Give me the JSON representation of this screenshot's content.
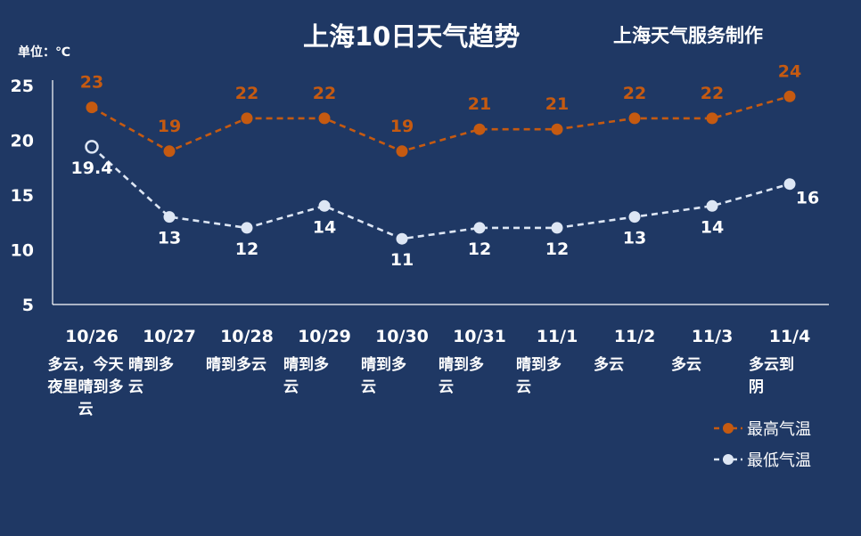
{
  "title": "上海10日天气趋势",
  "subtitle": "上海天气服务制作",
  "unit_label": "单位：℃",
  "colors": {
    "background": "#1f3864",
    "high": "#c55a11",
    "low": "#dde6f4",
    "axis": "#ffffff"
  },
  "descriptions": [
    [
      "多云，今天",
      "夜里晴到多",
      "云"
    ],
    [
      "晴到多",
      "云"
    ],
    [
      "晴到多云"
    ],
    [
      "晴到多",
      "云"
    ],
    [
      "晴到多",
      "云"
    ],
    [
      "晴到多",
      "云"
    ],
    [
      "晴到多",
      "云"
    ],
    [
      "多云"
    ],
    [
      "多云"
    ],
    [
      "多云到",
      "阴"
    ]
  ],
  "chart_data": {
    "type": "line",
    "categories": [
      "10/26",
      "10/27",
      "10/28",
      "10/29",
      "10/30",
      "10/31",
      "11/1",
      "11/2",
      "11/3",
      "11/4"
    ],
    "series": [
      {
        "name": "最高气温",
        "values": [
          23,
          19,
          22,
          22,
          19,
          21,
          21,
          22,
          22,
          24
        ],
        "labels": [
          "23",
          "19",
          "22",
          "22",
          "19",
          "21",
          "21",
          "22",
          "22",
          "24"
        ]
      },
      {
        "name": "最低气温",
        "values": [
          19.4,
          13,
          12,
          14,
          11,
          12,
          12,
          13,
          14,
          16
        ],
        "labels": [
          "19.4",
          "13",
          "12",
          "14",
          "11",
          "12",
          "12",
          "13",
          "14",
          "16"
        ]
      }
    ],
    "yticks": [
      5,
      10,
      15,
      20,
      25
    ],
    "ylim": [
      5,
      25
    ],
    "grid": false,
    "legend": "bottom-right"
  }
}
